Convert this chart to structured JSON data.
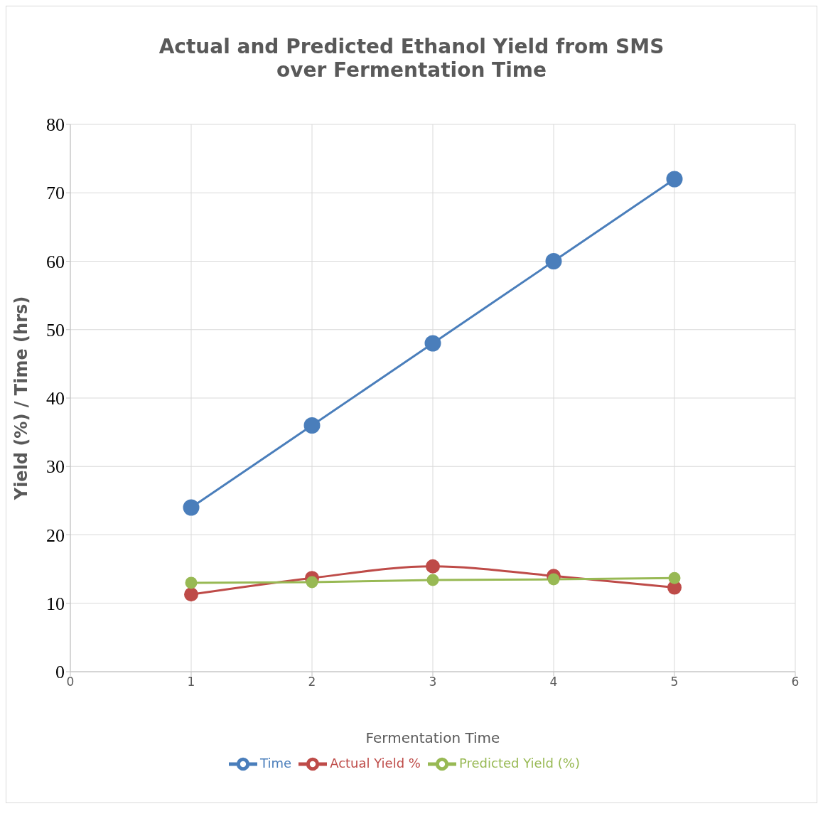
{
  "chart_data": {
    "type": "line",
    "title": "Actual and Predicted Ethanol Yield from SMS over Fermentation Time",
    "xlabel": "Fermentation Time",
    "ylabel": "Yield (%) / Time (hrs)",
    "x": [
      1,
      2,
      3,
      4,
      5
    ],
    "series": [
      {
        "name": "Time",
        "color": "#4a7ebb",
        "values": [
          24,
          36,
          48,
          60,
          72
        ]
      },
      {
        "name": "Actual  Yield %",
        "color": "#be4b48",
        "values": [
          11.3,
          13.7,
          15.4,
          14.0,
          12.3
        ]
      },
      {
        "name": "Predicted Yield (%)",
        "color": "#98b954",
        "values": [
          13.0,
          13.1,
          13.4,
          13.5,
          13.7
        ]
      }
    ],
    "xlim": [
      0,
      6
    ],
    "xticks": [
      0,
      1,
      2,
      3,
      4,
      5,
      6
    ],
    "ylim": [
      0,
      80
    ],
    "yticks": [
      0,
      10,
      20,
      30,
      40,
      50,
      60,
      70,
      80
    ],
    "grid": true,
    "legend": "bottom",
    "marker": "circle",
    "line_style": "solid"
  }
}
